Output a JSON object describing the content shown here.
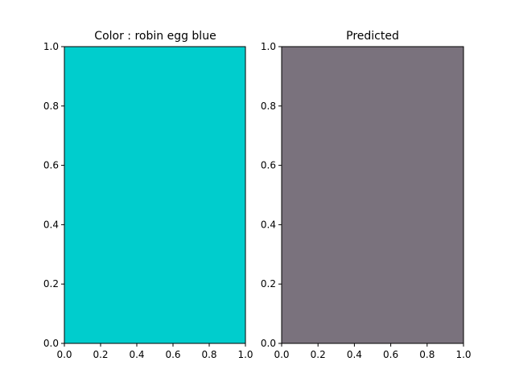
{
  "chart_data": [
    {
      "type": "heatmap",
      "title": "Color : robin egg blue",
      "fill_color": "#00cdcd",
      "xlim": [
        0.0,
        1.0
      ],
      "ylim": [
        0.0,
        1.0
      ],
      "xticks": [
        "0.0",
        "0.2",
        "0.4",
        "0.6",
        "0.8",
        "1.0"
      ],
      "yticks": [
        "0.0",
        "0.2",
        "0.4",
        "0.6",
        "0.8",
        "1.0"
      ],
      "grid": false
    },
    {
      "type": "heatmap",
      "title": "Predicted",
      "fill_color": "#7a727d",
      "xlim": [
        0.0,
        1.0
      ],
      "ylim": [
        0.0,
        1.0
      ],
      "xticks": [
        "0.0",
        "0.2",
        "0.4",
        "0.6",
        "0.8",
        "1.0"
      ],
      "yticks": [
        "0.0",
        "0.2",
        "0.4",
        "0.6",
        "0.8",
        "1.0"
      ],
      "grid": false
    }
  ]
}
